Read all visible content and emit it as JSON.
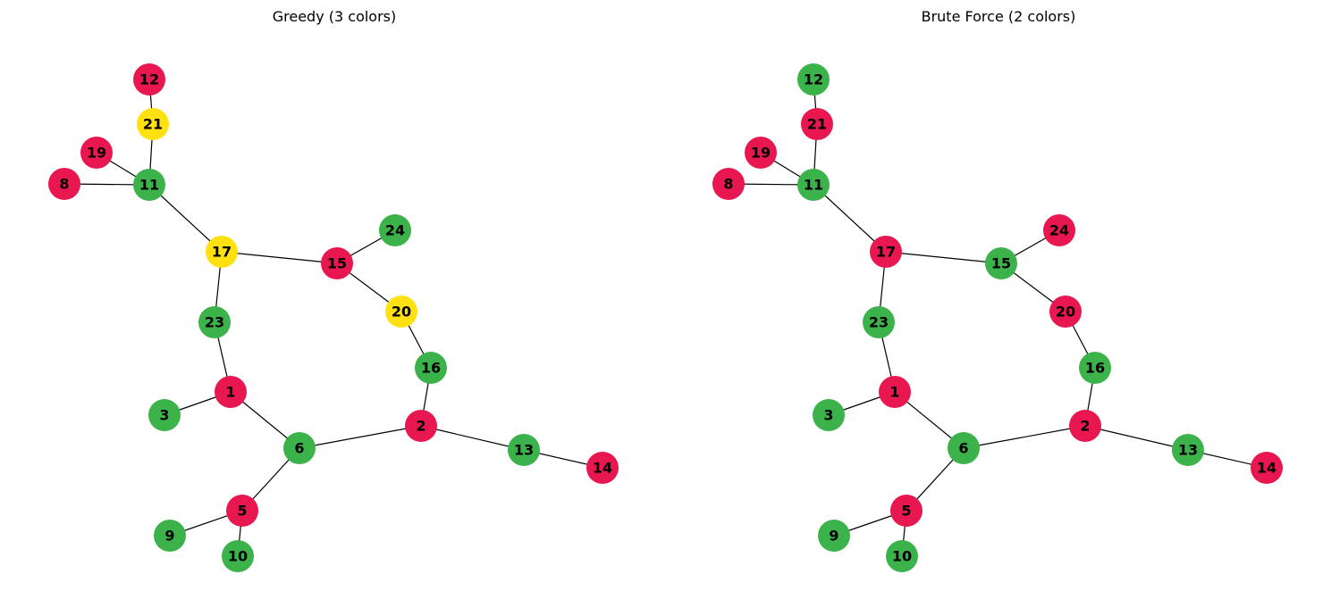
{
  "colors": {
    "red": "#e8174f",
    "green": "#3cb34a",
    "yellow": "#ffe112",
    "edge": "#000000",
    "label": "#000000"
  },
  "edges": [
    [
      "12",
      "21"
    ],
    [
      "21",
      "11"
    ],
    [
      "19",
      "11"
    ],
    [
      "8",
      "11"
    ],
    [
      "11",
      "17"
    ],
    [
      "17",
      "15"
    ],
    [
      "15",
      "24"
    ],
    [
      "15",
      "20"
    ],
    [
      "20",
      "16"
    ],
    [
      "16",
      "2"
    ],
    [
      "17",
      "23"
    ],
    [
      "23",
      "1"
    ],
    [
      "1",
      "3"
    ],
    [
      "1",
      "6"
    ],
    [
      "6",
      "2"
    ],
    [
      "2",
      "13"
    ],
    [
      "13",
      "14"
    ],
    [
      "6",
      "5"
    ],
    [
      "5",
      "9"
    ],
    [
      "5",
      "10"
    ]
  ],
  "panels": [
    {
      "title": "Greedy (3 colors)",
      "coloring": {
        "12": "red",
        "21": "yellow",
        "19": "red",
        "8": "red",
        "11": "green",
        "17": "yellow",
        "24": "green",
        "15": "red",
        "20": "yellow",
        "23": "green",
        "16": "green",
        "1": "red",
        "3": "green",
        "2": "red",
        "6": "green",
        "13": "green",
        "14": "red",
        "5": "red",
        "9": "green",
        "10": "green"
      }
    },
    {
      "title": "Brute Force (2 colors)",
      "coloring": {
        "12": "green",
        "21": "red",
        "19": "red",
        "8": "red",
        "11": "green",
        "17": "red",
        "24": "red",
        "15": "green",
        "20": "red",
        "23": "green",
        "16": "green",
        "1": "red",
        "3": "green",
        "2": "red",
        "6": "green",
        "13": "green",
        "14": "red",
        "5": "red",
        "9": "green",
        "10": "green"
      }
    }
  ]
}
